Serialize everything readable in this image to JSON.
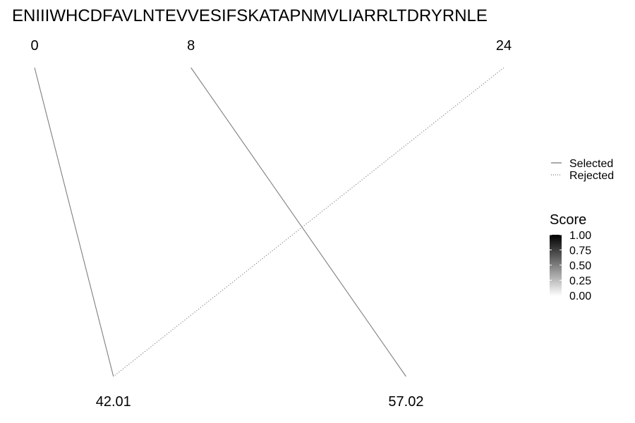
{
  "chart_data": {
    "type": "slope-graph",
    "title": "ENIIIWHCDFAVLNTEVVESIFSKATAPNMVLIARRLTDRYRNLE",
    "top_axis": {
      "range": [
        0,
        24
      ],
      "labels": [
        "0",
        "8",
        "24"
      ]
    },
    "bottom_axis": {
      "range": [
        38,
        62
      ],
      "labels": [
        "42.01",
        "57.02"
      ]
    },
    "connections": [
      {
        "from": 0,
        "to": 42.01,
        "status": "Selected"
      },
      {
        "from": 8,
        "to": 57.02,
        "status": "Selected"
      },
      {
        "from": 24,
        "to": 42.01,
        "status": "Rejected"
      }
    ],
    "legend": {
      "entries": [
        {
          "label": "Selected",
          "linetype": "solid"
        },
        {
          "label": "Rejected",
          "linetype": "dotted"
        }
      ],
      "placement": "right"
    },
    "score_scale": {
      "title": "Score",
      "ticks": [
        "1.00",
        "0.75",
        "0.50",
        "0.25",
        "0.00"
      ],
      "color_high": "#000000",
      "color_low": "#ffffff"
    },
    "line_color": "#7f7f7f"
  }
}
